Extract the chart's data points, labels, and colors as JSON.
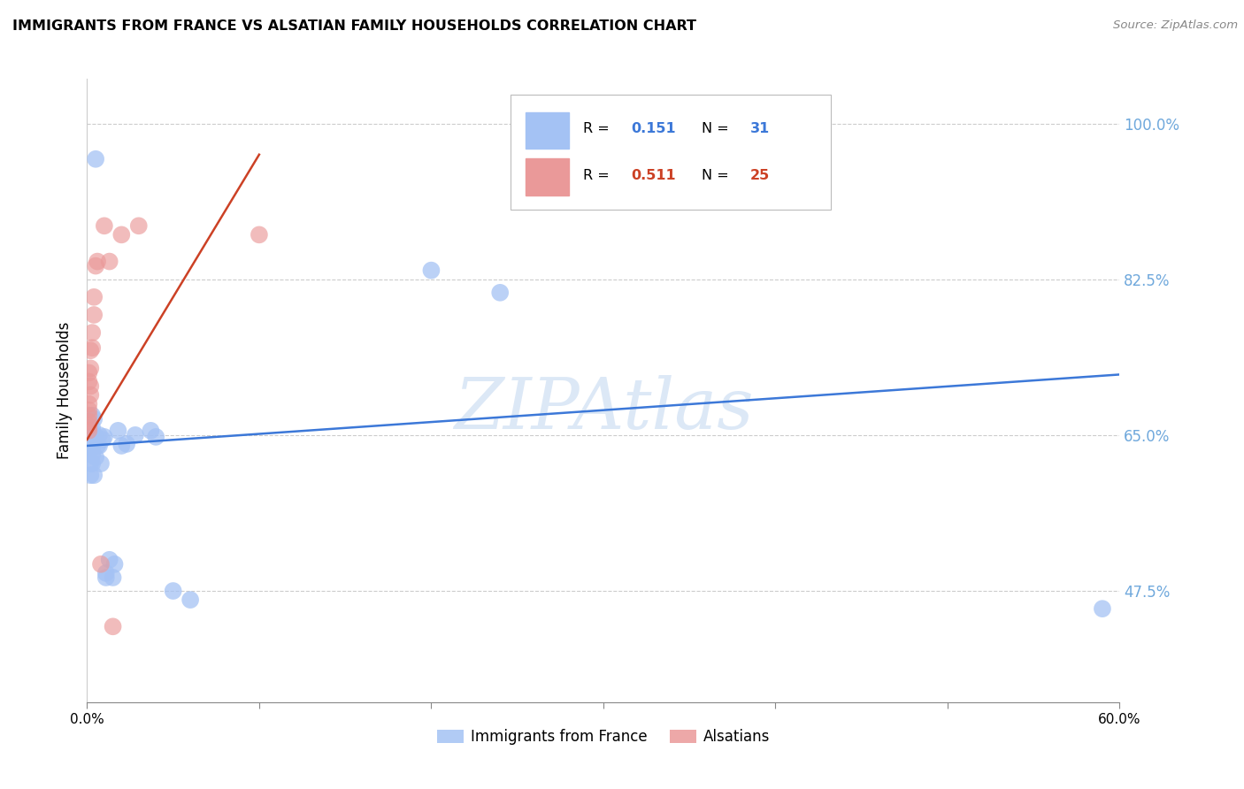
{
  "title": "IMMIGRANTS FROM FRANCE VS ALSATIAN FAMILY HOUSEHOLDS CORRELATION CHART",
  "source": "Source: ZipAtlas.com",
  "ylabel": "Family Households",
  "x_min": 0.0,
  "x_max": 0.6,
  "y_min": 0.35,
  "y_max": 1.05,
  "yticks": [
    0.475,
    0.65,
    0.825,
    1.0
  ],
  "ytick_labels": [
    "47.5%",
    "65.0%",
    "82.5%",
    "100.0%"
  ],
  "xticks": [
    0.0,
    0.1,
    0.2,
    0.3,
    0.4,
    0.5,
    0.6
  ],
  "xtick_labels": [
    "0.0%",
    "",
    "",
    "",
    "",
    "",
    "60.0%"
  ],
  "blue_color": "#a4c2f4",
  "pink_color": "#ea9999",
  "blue_line_color": "#3c78d8",
  "pink_line_color": "#cc4125",
  "ytick_color": "#6fa8dc",
  "watermark": "ZIPAtlas",
  "blue_scatter": [
    [
      0.001,
      0.63
    ],
    [
      0.001,
      0.64
    ],
    [
      0.002,
      0.618
    ],
    [
      0.002,
      0.605
    ],
    [
      0.003,
      0.672
    ],
    [
      0.003,
      0.658
    ],
    [
      0.003,
      0.635
    ],
    [
      0.003,
      0.628
    ],
    [
      0.003,
      0.618
    ],
    [
      0.004,
      0.668
    ],
    [
      0.004,
      0.65
    ],
    [
      0.004,
      0.605
    ],
    [
      0.005,
      0.625
    ],
    [
      0.005,
      0.648
    ],
    [
      0.006,
      0.638
    ],
    [
      0.007,
      0.65
    ],
    [
      0.007,
      0.638
    ],
    [
      0.008,
      0.618
    ],
    [
      0.009,
      0.645
    ],
    [
      0.01,
      0.648
    ],
    [
      0.011,
      0.49
    ],
    [
      0.011,
      0.495
    ],
    [
      0.013,
      0.51
    ],
    [
      0.015,
      0.49
    ],
    [
      0.016,
      0.505
    ],
    [
      0.018,
      0.655
    ],
    [
      0.02,
      0.638
    ],
    [
      0.023,
      0.64
    ],
    [
      0.028,
      0.65
    ],
    [
      0.037,
      0.655
    ],
    [
      0.04,
      0.648
    ],
    [
      0.2,
      0.835
    ],
    [
      0.24,
      0.81
    ],
    [
      0.05,
      0.475
    ],
    [
      0.06,
      0.465
    ],
    [
      0.59,
      0.455
    ],
    [
      0.005,
      0.96
    ]
  ],
  "pink_scatter": [
    [
      0.001,
      0.72
    ],
    [
      0.001,
      0.71
    ],
    [
      0.001,
      0.685
    ],
    [
      0.001,
      0.678
    ],
    [
      0.001,
      0.672
    ],
    [
      0.001,
      0.665
    ],
    [
      0.001,
      0.66
    ],
    [
      0.001,
      0.655
    ],
    [
      0.002,
      0.745
    ],
    [
      0.002,
      0.725
    ],
    [
      0.002,
      0.705
    ],
    [
      0.002,
      0.695
    ],
    [
      0.003,
      0.765
    ],
    [
      0.003,
      0.748
    ],
    [
      0.004,
      0.805
    ],
    [
      0.004,
      0.785
    ],
    [
      0.005,
      0.84
    ],
    [
      0.006,
      0.845
    ],
    [
      0.008,
      0.505
    ],
    [
      0.01,
      0.885
    ],
    [
      0.013,
      0.845
    ],
    [
      0.02,
      0.875
    ],
    [
      0.1,
      0.875
    ],
    [
      0.015,
      0.435
    ],
    [
      0.03,
      0.885
    ]
  ],
  "blue_line_x": [
    0.0,
    0.6
  ],
  "blue_line_y": [
    0.638,
    0.718
  ],
  "pink_line_x": [
    0.0,
    0.1
  ],
  "pink_line_y": [
    0.645,
    0.965
  ]
}
